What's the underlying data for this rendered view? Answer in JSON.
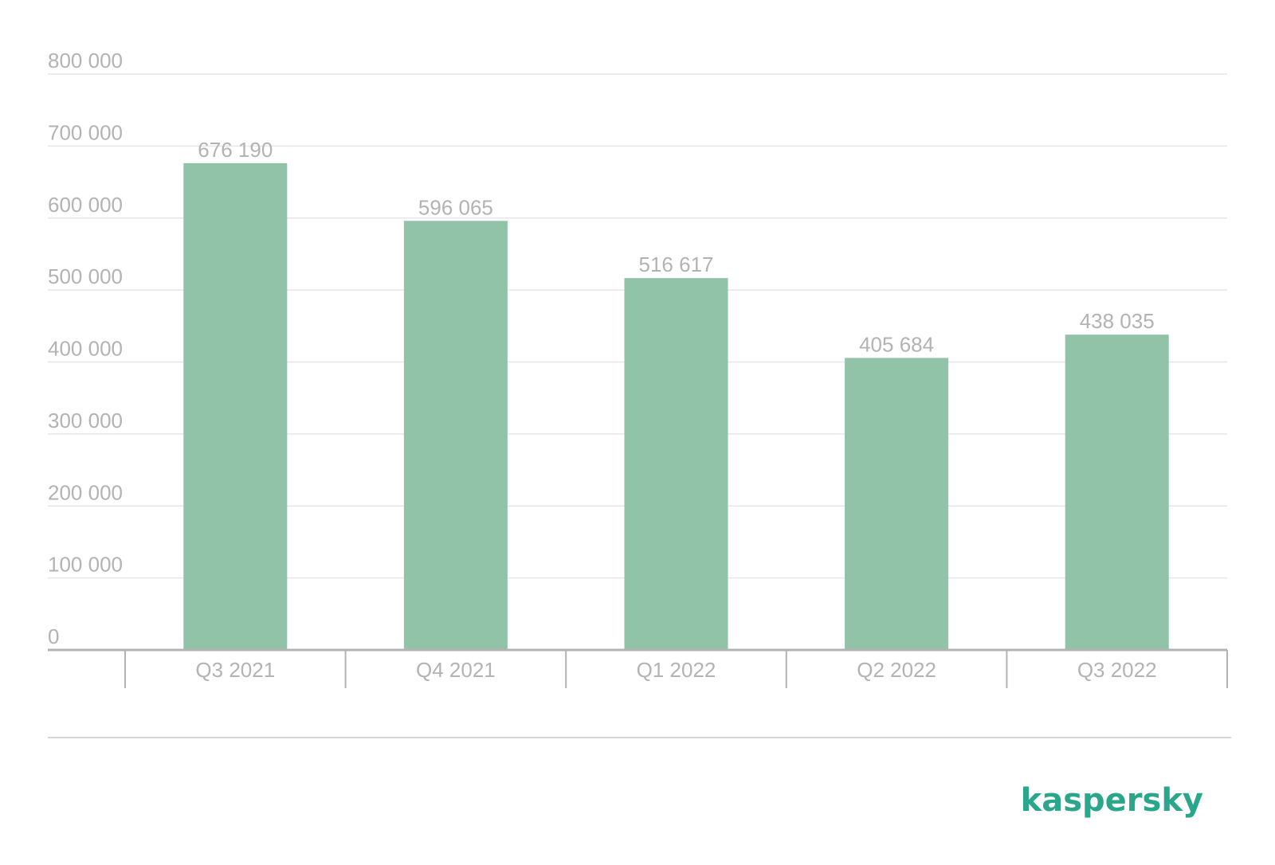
{
  "chart_data": {
    "type": "bar",
    "categories": [
      "Q3 2021",
      "Q4 2021",
      "Q1 2022",
      "Q2 2022",
      "Q3 2022"
    ],
    "values": [
      676190,
      596065,
      516617,
      405684,
      438035
    ],
    "data_labels": [
      "676 190",
      "596 065",
      "516 617",
      "405 684",
      "438 035"
    ],
    "y_ticks": [
      0,
      100000,
      200000,
      300000,
      400000,
      500000,
      600000,
      700000,
      800000
    ],
    "y_tick_labels": [
      "0",
      "100 000",
      "200 000",
      "300 000",
      "400 000",
      "500 000",
      "600 000",
      "700 000",
      "800 000"
    ],
    "ylim": [
      0,
      800000
    ],
    "grid": true,
    "bar_color": "#90c3a7",
    "title": "",
    "xlabel": "",
    "ylabel": ""
  },
  "brand": {
    "logo_text": "kaspersky",
    "color": "#2aa68a"
  }
}
